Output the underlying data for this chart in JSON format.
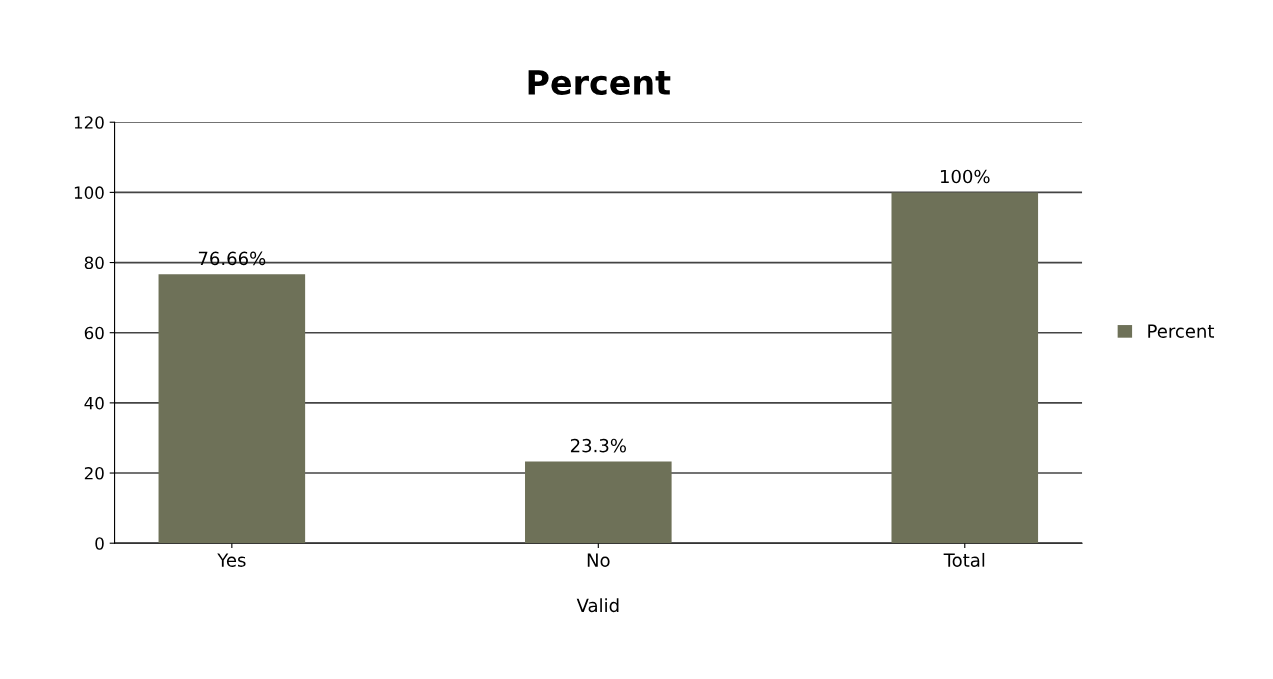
{
  "chart_data": {
    "type": "bar",
    "title": "Percent",
    "xlabel": "Valid",
    "categories": [
      "Yes",
      "No",
      "Total"
    ],
    "series": [
      {
        "name": "Percent",
        "color": "#6e7158",
        "values": [
          76.66,
          23.3,
          100
        ],
        "value_labels": [
          "76.66%",
          "23.3%",
          "100%"
        ]
      }
    ],
    "ylim": [
      0,
      120
    ],
    "yticks": [
      0,
      20,
      40,
      60,
      80,
      100,
      120
    ],
    "grid": "y",
    "legend": "right"
  }
}
